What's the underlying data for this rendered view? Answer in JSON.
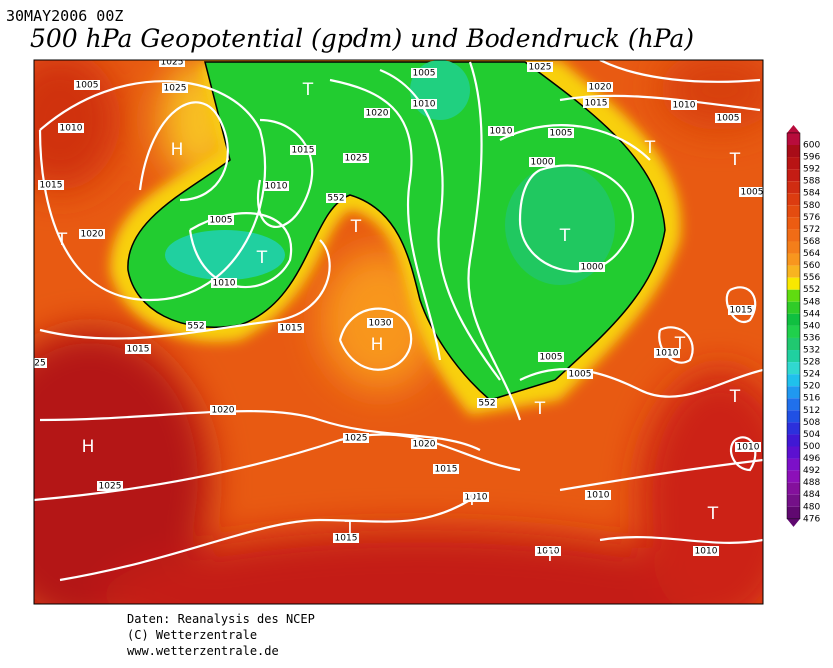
{
  "header": {
    "date": "30MAY2006 00Z",
    "title": "500 hPa Geopotential (gpdm) und Bodendruck (hPa)"
  },
  "map": {
    "labels": [
      "1025",
      "1005",
      "1025",
      "1010",
      "1015",
      "1020",
      "1005",
      "1010",
      "1010",
      "1015",
      "1025",
      "1020",
      "1005",
      "1010",
      "1025",
      "1020",
      "1015",
      "1010",
      "1005",
      "1010",
      "1005",
      "1000",
      "1005",
      "1000",
      "1030",
      "1015",
      "1015",
      "1015",
      "1010",
      "1005",
      "1005",
      "1020",
      "1025",
      "1020",
      "1015",
      "1025",
      "1010",
      "1010",
      "1015",
      "1010",
      "1010",
      "25",
      "1010",
      "552",
      "552",
      "552"
    ],
    "centers": [
      "H",
      "H",
      "H",
      "T",
      "T",
      "T",
      "T",
      "T",
      "T",
      "T",
      "T",
      "T",
      "T",
      "T",
      "T",
      "T",
      "T"
    ]
  },
  "legend": {
    "labels": [
      "600",
      "596",
      "592",
      "588",
      "584",
      "580",
      "576",
      "572",
      "568",
      "564",
      "560",
      "556",
      "552",
      "548",
      "544",
      "540",
      "536",
      "532",
      "528",
      "524",
      "520",
      "516",
      "512",
      "508",
      "504",
      "500",
      "496",
      "492",
      "488",
      "484",
      "480",
      "476"
    ],
    "colors": [
      "#b80c3c",
      "#a80c18",
      "#b81414",
      "#c41c14",
      "#d02c12",
      "#dc3c10",
      "#e44c10",
      "#ec5c12",
      "#f06c16",
      "#f47e1a",
      "#f8961e",
      "#f8b420",
      "#f8e800",
      "#60dc10",
      "#30cc28",
      "#10c040",
      "#20d04c",
      "#20c870",
      "#20d0a0",
      "#30d8d0",
      "#20c0ec",
      "#2098f0",
      "#2070ec",
      "#2050e4",
      "#2c30dc",
      "#4018d4",
      "#5c10d0",
      "#7c10c8",
      "#8c10b8",
      "#84109c",
      "#741088",
      "#600870"
    ]
  },
  "footer": {
    "lines": [
      "Daten: Reanalysis des NCEP",
      "(C) Wetterzentrale",
      "www.wetterzentrale.de"
    ]
  }
}
